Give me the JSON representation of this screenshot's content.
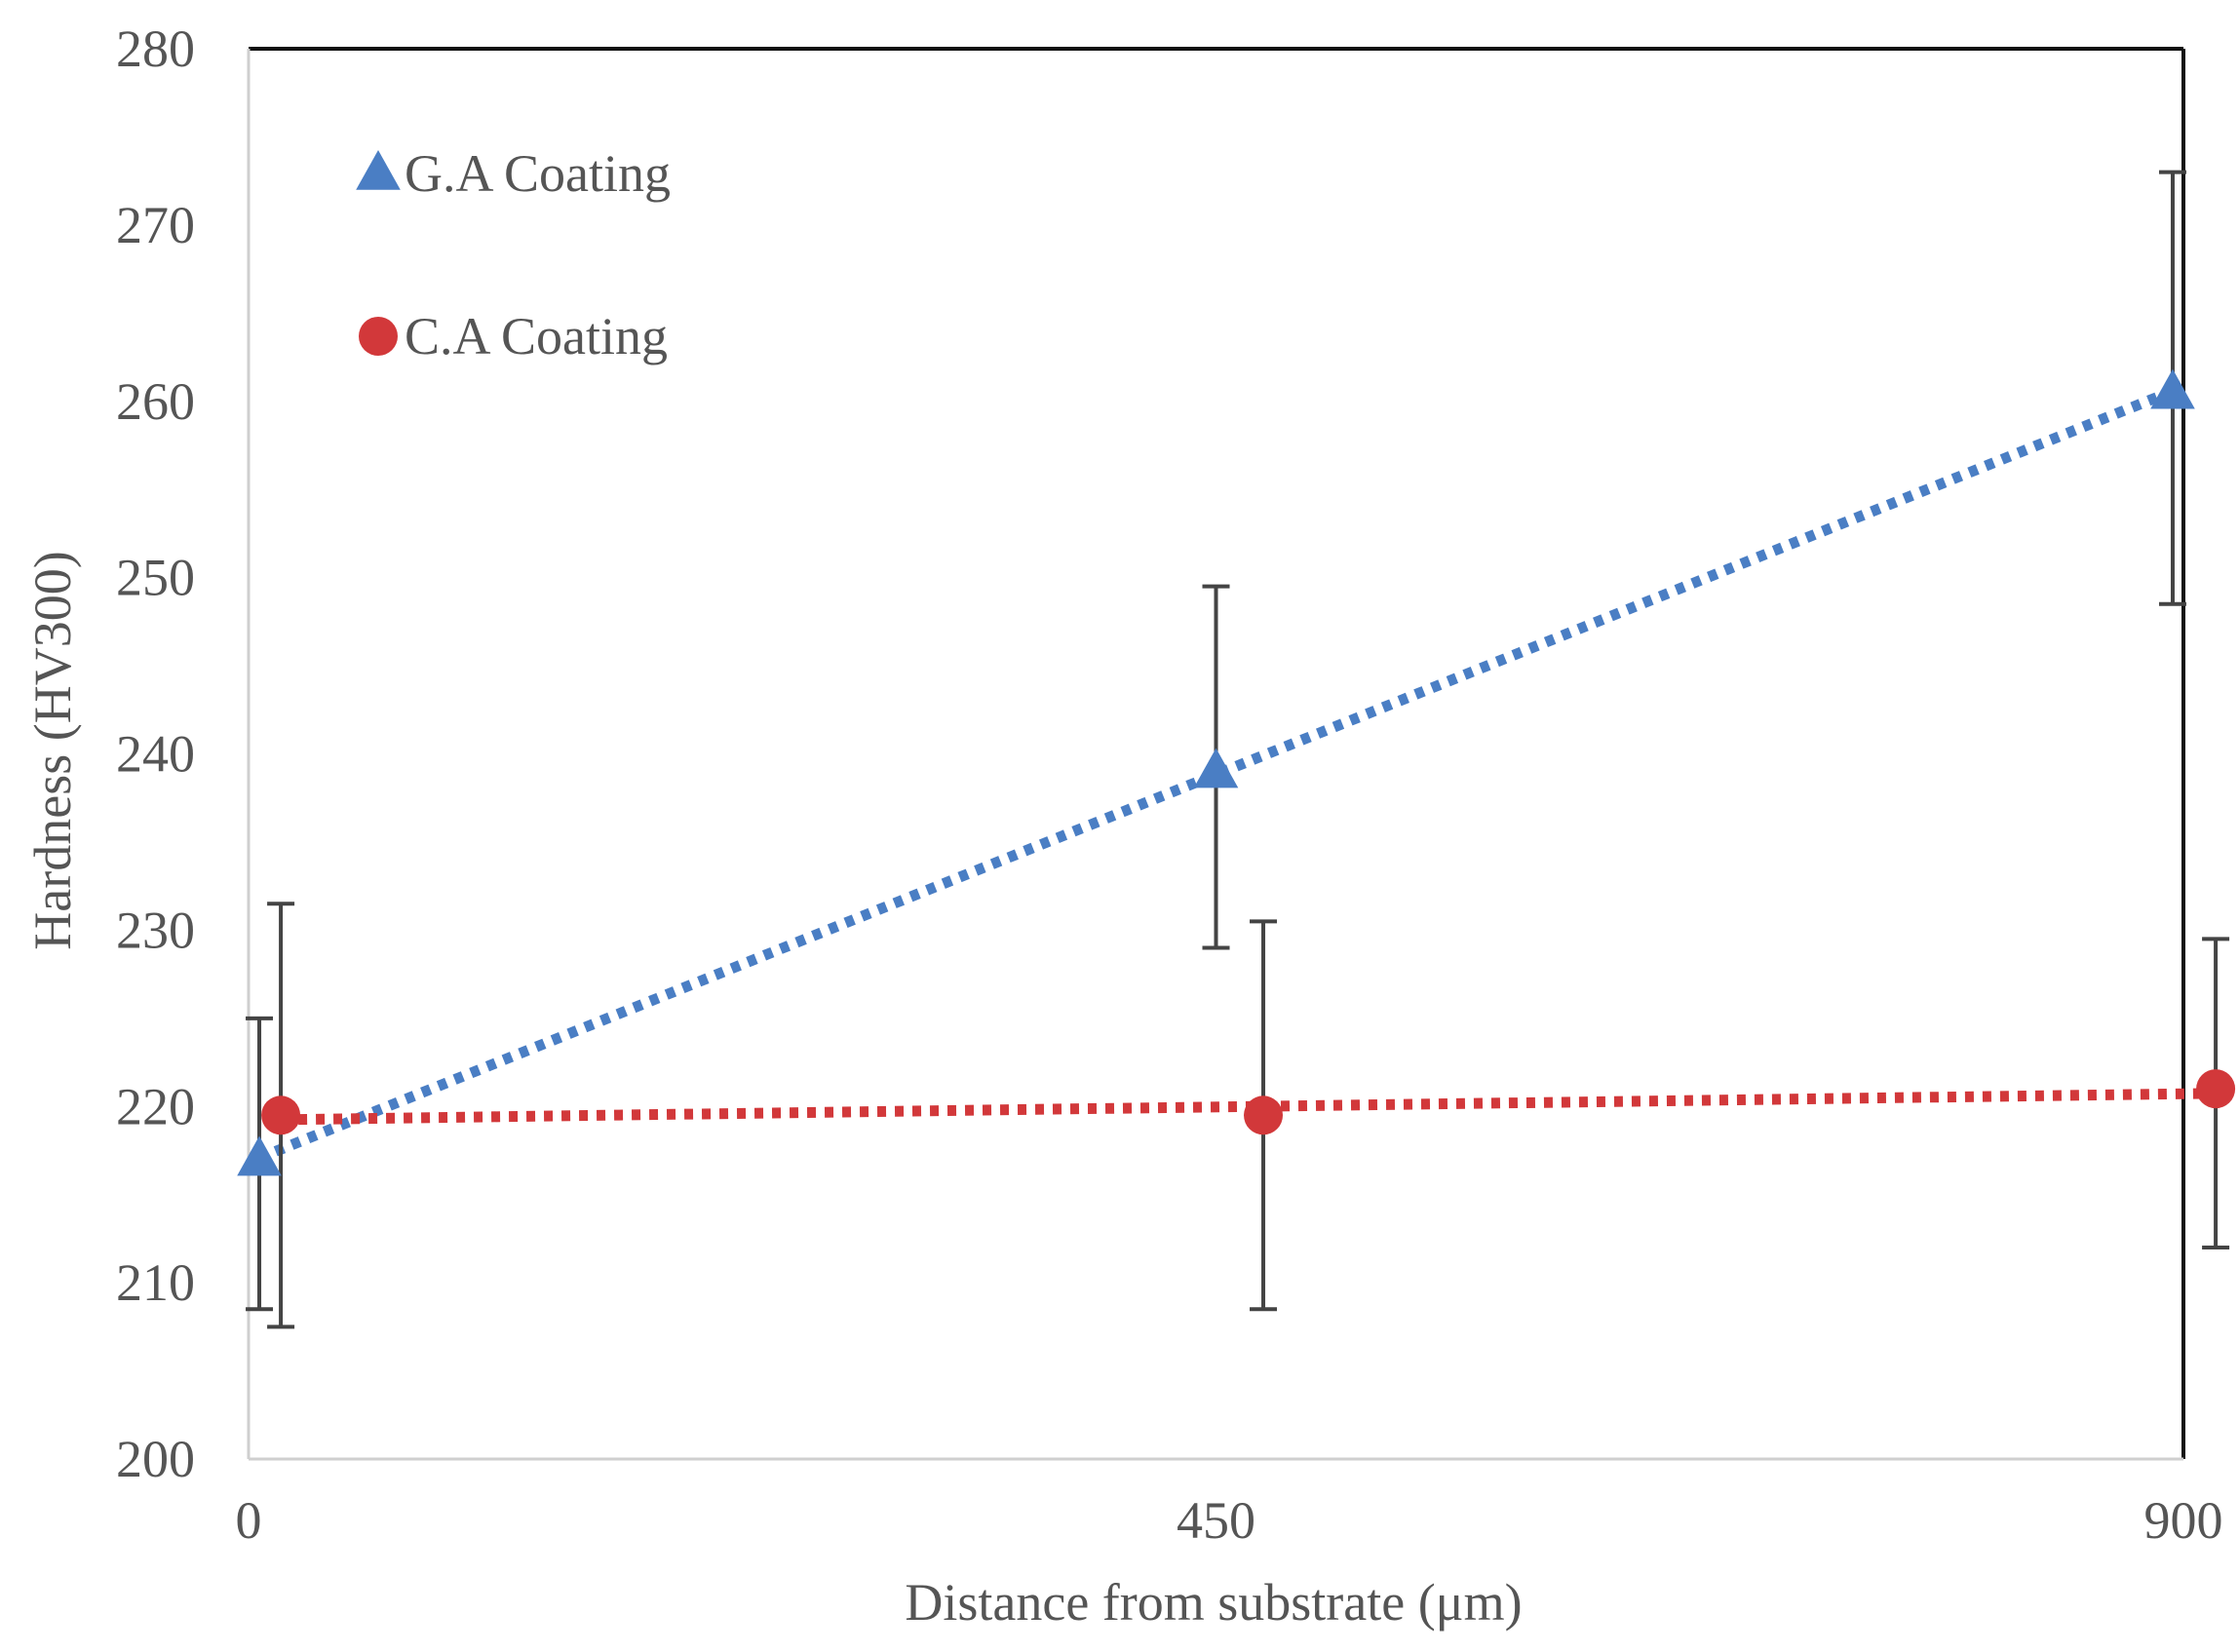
{
  "chart_data": {
    "type": "scatter",
    "title": "",
    "xlabel": "Distance from substrate (μm)",
    "ylabel": "Hardness (HV300)",
    "xlim": [
      0,
      900
    ],
    "ylim": [
      200,
      280
    ],
    "x_ticks": [
      0,
      450,
      900
    ],
    "x_tick_labels": [
      "0",
      "450",
      "900"
    ],
    "y_ticks": [
      200,
      210,
      220,
      230,
      240,
      250,
      260,
      270,
      280
    ],
    "y_tick_labels": [
      "200",
      "210",
      "220",
      "230",
      "240",
      "250",
      "260",
      "270",
      "280"
    ],
    "grid": false,
    "legend_position": "top-left",
    "trendline": "linear, dotted",
    "series": [
      {
        "name": "G.A Coating",
        "marker": "triangle",
        "color": "#4a7ec4",
        "x": [
          5,
          450,
          895
        ],
        "y": [
          217,
          239,
          260.5
        ],
        "err_low": [
          208.5,
          229,
          248.5
        ],
        "err_high": [
          225,
          249.5,
          273
        ]
      },
      {
        "name": "C.A Coating",
        "marker": "circle",
        "color": "#d2383a",
        "x": [
          15,
          472,
          915
        ],
        "y": [
          219.5,
          219.5,
          221
        ],
        "err_low": [
          207.5,
          208.5,
          212
        ],
        "err_high": [
          231.5,
          230.5,
          229.5
        ]
      }
    ]
  }
}
